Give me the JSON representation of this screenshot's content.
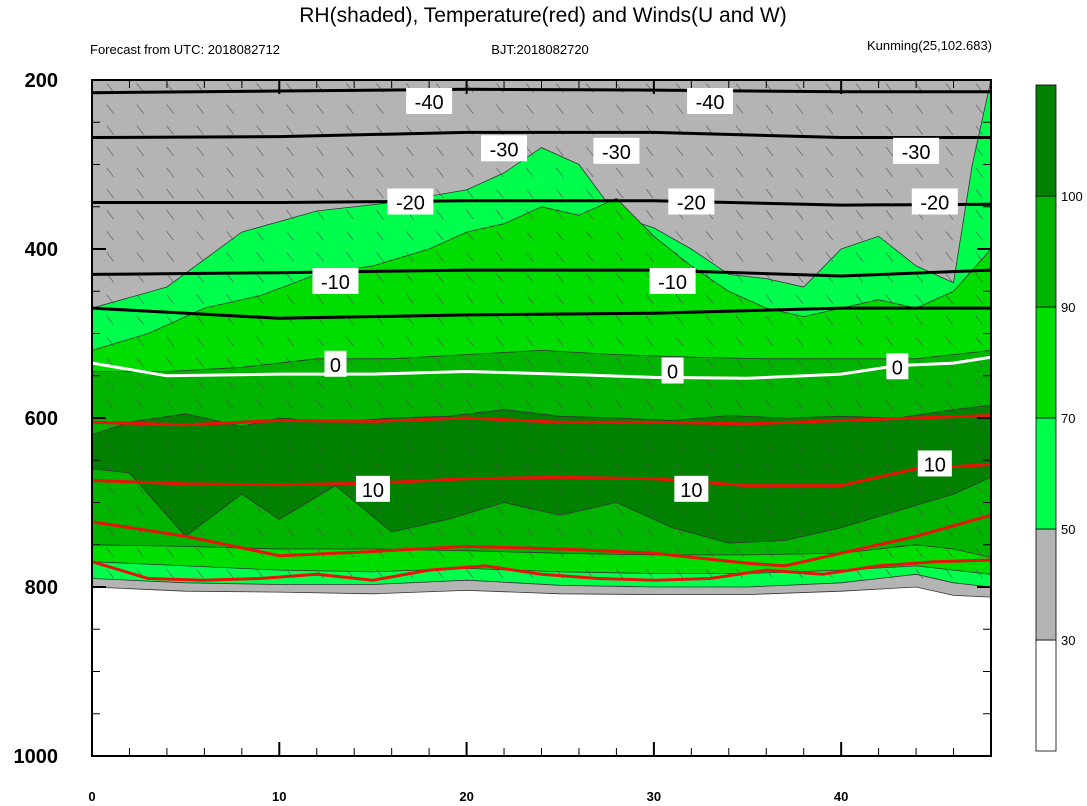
{
  "title": "RH(shaded), Temperature(red) and Winds(U and W)",
  "subtitle_left": "Forecast from UTC: 2018082712",
  "subtitle_center": "BJT:2018082720",
  "subtitle_right": "Kunming(25,102.683)",
  "chart_data": {
    "type": "contour",
    "title": "RH(shaded), Temperature(red) and Winds(U and W)",
    "x": {
      "range": [
        0,
        48
      ],
      "ticks": [
        0,
        10,
        20,
        30,
        40
      ],
      "tick_labels": [
        "0",
        "10",
        "20",
        "30",
        "40"
      ]
    },
    "y": {
      "range": [
        200,
        1000
      ],
      "reversed": true,
      "ticks": [
        200,
        400,
        600,
        800,
        1000
      ],
      "tick_labels": [
        "200",
        "400",
        "600",
        "800",
        "1000"
      ]
    },
    "colorbar": {
      "levels": [
        30,
        50,
        70,
        90,
        100
      ],
      "labels": [
        "30",
        "50",
        "70",
        "90",
        "100"
      ],
      "colors": [
        "#ffffff",
        "#b4b4b4",
        "#00ff4c",
        "#00dd00",
        "#00b400",
        "#008200"
      ]
    },
    "rh_bands": [
      {
        "color": "#b4b4b4",
        "top": [
          [
            0,
            200
          ],
          [
            48,
            200
          ]
        ],
        "bottom": [
          [
            0,
            800
          ],
          [
            5,
            805
          ],
          [
            10,
            806
          ],
          [
            15,
            808
          ],
          [
            20,
            804
          ],
          [
            25,
            808
          ],
          [
            30,
            809
          ],
          [
            35,
            809
          ],
          [
            40,
            805
          ],
          [
            44,
            800
          ],
          [
            46,
            810
          ],
          [
            48,
            812
          ]
        ]
      },
      {
        "color": "#00ff4c",
        "top": [
          [
            0,
            470
          ],
          [
            4,
            445
          ],
          [
            8,
            380
          ],
          [
            12,
            355
          ],
          [
            16,
            345
          ],
          [
            20,
            330
          ],
          [
            22,
            310
          ],
          [
            24,
            280
          ],
          [
            26,
            300
          ],
          [
            28,
            360
          ],
          [
            30,
            375
          ],
          [
            32,
            400
          ],
          [
            34,
            430
          ],
          [
            36,
            435
          ],
          [
            38,
            445
          ],
          [
            40,
            400
          ],
          [
            42,
            385
          ],
          [
            44,
            420
          ],
          [
            46,
            440
          ],
          [
            47,
            300
          ],
          [
            48,
            200
          ]
        ],
        "bottom": [
          [
            0,
            790
          ],
          [
            5,
            795
          ],
          [
            10,
            797
          ],
          [
            15,
            797
          ],
          [
            20,
            792
          ],
          [
            25,
            798
          ],
          [
            30,
            800
          ],
          [
            35,
            800
          ],
          [
            40,
            795
          ],
          [
            44,
            785
          ],
          [
            46,
            795
          ],
          [
            48,
            800
          ]
        ]
      },
      {
        "color": "#00dd00",
        "top": [
          [
            0,
            520
          ],
          [
            3,
            500
          ],
          [
            6,
            470
          ],
          [
            9,
            455
          ],
          [
            12,
            430
          ],
          [
            15,
            420
          ],
          [
            18,
            400
          ],
          [
            20,
            380
          ],
          [
            22,
            370
          ],
          [
            24,
            350
          ],
          [
            26,
            360
          ],
          [
            28,
            340
          ],
          [
            30,
            385
          ],
          [
            32,
            420
          ],
          [
            34,
            450
          ],
          [
            36,
            470
          ],
          [
            38,
            480
          ],
          [
            40,
            470
          ],
          [
            42,
            460
          ],
          [
            44,
            470
          ],
          [
            46,
            450
          ],
          [
            48,
            400
          ]
        ],
        "bottom": [
          [
            0,
            770
          ],
          [
            5,
            775
          ],
          [
            10,
            780
          ],
          [
            15,
            782
          ],
          [
            20,
            778
          ],
          [
            25,
            782
          ],
          [
            30,
            784
          ],
          [
            35,
            784
          ],
          [
            40,
            780
          ],
          [
            44,
            775
          ],
          [
            46,
            780
          ],
          [
            48,
            785
          ]
        ]
      },
      {
        "color": "#00b400",
        "top": [
          [
            0,
            545
          ],
          [
            4,
            545
          ],
          [
            8,
            540
          ],
          [
            12,
            530
          ],
          [
            16,
            530
          ],
          [
            20,
            525
          ],
          [
            24,
            520
          ],
          [
            28,
            525
          ],
          [
            32,
            528
          ],
          [
            36,
            530
          ],
          [
            40,
            530
          ],
          [
            44,
            530
          ],
          [
            48,
            520
          ]
        ],
        "bottom": [
          [
            0,
            750
          ],
          [
            5,
            752
          ],
          [
            10,
            755
          ],
          [
            15,
            755
          ],
          [
            20,
            757
          ],
          [
            25,
            760
          ],
          [
            30,
            762
          ],
          [
            35,
            762
          ],
          [
            40,
            760
          ],
          [
            44,
            750
          ],
          [
            46,
            755
          ],
          [
            48,
            765
          ]
        ]
      },
      {
        "color": "#008200",
        "top": [
          [
            0,
            620
          ],
          [
            2,
            605
          ],
          [
            5,
            595
          ],
          [
            8,
            610
          ],
          [
            10,
            600
          ],
          [
            13,
            605
          ],
          [
            16,
            600
          ],
          [
            19,
            598
          ],
          [
            22,
            590
          ],
          [
            25,
            598
          ],
          [
            28,
            600
          ],
          [
            31,
            603
          ],
          [
            34,
            597
          ],
          [
            37,
            600
          ],
          [
            40,
            598
          ],
          [
            43,
            600
          ],
          [
            46,
            590
          ],
          [
            48,
            585
          ]
        ],
        "bottom": [
          [
            0,
            660
          ],
          [
            2,
            665
          ],
          [
            5,
            740
          ],
          [
            8,
            690
          ],
          [
            10,
            720
          ],
          [
            13,
            680
          ],
          [
            16,
            735
          ],
          [
            19,
            720
          ],
          [
            22,
            700
          ],
          [
            25,
            715
          ],
          [
            28,
            700
          ],
          [
            31,
            730
          ],
          [
            34,
            748
          ],
          [
            37,
            745
          ],
          [
            40,
            730
          ],
          [
            43,
            710
          ],
          [
            46,
            690
          ],
          [
            48,
            670
          ]
        ]
      }
    ],
    "temperature_black": [
      {
        "label": "-40",
        "points": [
          [
            0,
            215
          ],
          [
            10,
            213
          ],
          [
            20,
            211
          ],
          [
            30,
            212
          ],
          [
            40,
            214
          ],
          [
            48,
            214
          ]
        ]
      },
      {
        "label": "-30",
        "points": [
          [
            0,
            268
          ],
          [
            10,
            267
          ],
          [
            20,
            262
          ],
          [
            30,
            262
          ],
          [
            40,
            268
          ],
          [
            48,
            268
          ]
        ]
      },
      {
        "label": "-20",
        "points": [
          [
            0,
            345
          ],
          [
            10,
            345
          ],
          [
            20,
            343
          ],
          [
            30,
            343
          ],
          [
            40,
            348
          ],
          [
            48,
            347
          ]
        ]
      },
      {
        "label": "-10",
        "points": [
          [
            0,
            430
          ],
          [
            10,
            428
          ],
          [
            20,
            425
          ],
          [
            30,
            425
          ],
          [
            40,
            432
          ],
          [
            48,
            425
          ]
        ]
      },
      {
        "label": "",
        "points": [
          [
            0,
            470
          ],
          [
            10,
            482
          ],
          [
            20,
            478
          ],
          [
            30,
            476
          ],
          [
            40,
            470
          ],
          [
            48,
            470
          ]
        ]
      }
    ],
    "temperature_white": [
      {
        "label": "0",
        "points": [
          [
            0,
            535
          ],
          [
            4,
            550
          ],
          [
            10,
            548
          ],
          [
            15,
            548
          ],
          [
            20,
            545
          ],
          [
            25,
            548
          ],
          [
            30,
            552
          ],
          [
            35,
            553
          ],
          [
            40,
            548
          ],
          [
            43,
            538
          ],
          [
            46,
            535
          ],
          [
            48,
            528
          ]
        ]
      }
    ],
    "temperature_red": [
      {
        "label": "",
        "points": [
          [
            0,
            605
          ],
          [
            5,
            608
          ],
          [
            10,
            603
          ],
          [
            15,
            604
          ],
          [
            20,
            600
          ],
          [
            25,
            605
          ],
          [
            30,
            605
          ],
          [
            35,
            607
          ],
          [
            40,
            603
          ],
          [
            44,
            600
          ],
          [
            48,
            597
          ]
        ]
      },
      {
        "label": "10",
        "points": [
          [
            0,
            674
          ],
          [
            5,
            678
          ],
          [
            10,
            679
          ],
          [
            15,
            677
          ],
          [
            20,
            672
          ],
          [
            25,
            670
          ],
          [
            30,
            672
          ],
          [
            35,
            680
          ],
          [
            40,
            680
          ],
          [
            44,
            660
          ],
          [
            48,
            655
          ]
        ]
      },
      {
        "label": "",
        "points": [
          [
            0,
            723
          ],
          [
            5,
            740
          ],
          [
            10,
            763
          ],
          [
            15,
            758
          ],
          [
            20,
            752
          ],
          [
            25,
            755
          ],
          [
            30,
            760
          ],
          [
            35,
            772
          ],
          [
            37,
            775
          ],
          [
            40,
            760
          ],
          [
            44,
            740
          ],
          [
            48,
            715
          ]
        ]
      },
      {
        "label": "",
        "points": [
          [
            0,
            770
          ],
          [
            3,
            790
          ],
          [
            6,
            792
          ],
          [
            9,
            790
          ],
          [
            12,
            785
          ],
          [
            15,
            792
          ],
          [
            18,
            780
          ],
          [
            21,
            775
          ],
          [
            24,
            785
          ],
          [
            27,
            790
          ],
          [
            30,
            792
          ],
          [
            33,
            790
          ],
          [
            36,
            780
          ],
          [
            39,
            785
          ],
          [
            42,
            775
          ],
          [
            45,
            770
          ],
          [
            48,
            768
          ]
        ]
      }
    ],
    "label_labels": [
      {
        "text": "-40",
        "x": 18,
        "y": 226
      },
      {
        "text": "-30",
        "x": 22,
        "y": 282
      },
      {
        "text": "-30",
        "x": 28,
        "y": 285
      },
      {
        "text": "-20",
        "x": 17,
        "y": 345
      },
      {
        "text": "-20",
        "x": 32,
        "y": 345
      },
      {
        "text": "-30",
        "x": 44,
        "y": 285
      },
      {
        "text": "-20",
        "x": 45,
        "y": 345
      },
      {
        "text": "-40",
        "x": 33,
        "y": 226
      },
      {
        "text": "-10",
        "x": 13,
        "y": 439
      },
      {
        "text": "-10",
        "x": 31,
        "y": 439
      },
      {
        "text": "0",
        "x": 13,
        "y": 537
      },
      {
        "text": "0",
        "x": 31,
        "y": 545
      },
      {
        "text": "0",
        "x": 43,
        "y": 540
      },
      {
        "text": "10",
        "x": 15,
        "y": 685
      },
      {
        "text": "10",
        "x": 32,
        "y": 685
      },
      {
        "text": "10",
        "x": 45,
        "y": 655
      }
    ]
  }
}
